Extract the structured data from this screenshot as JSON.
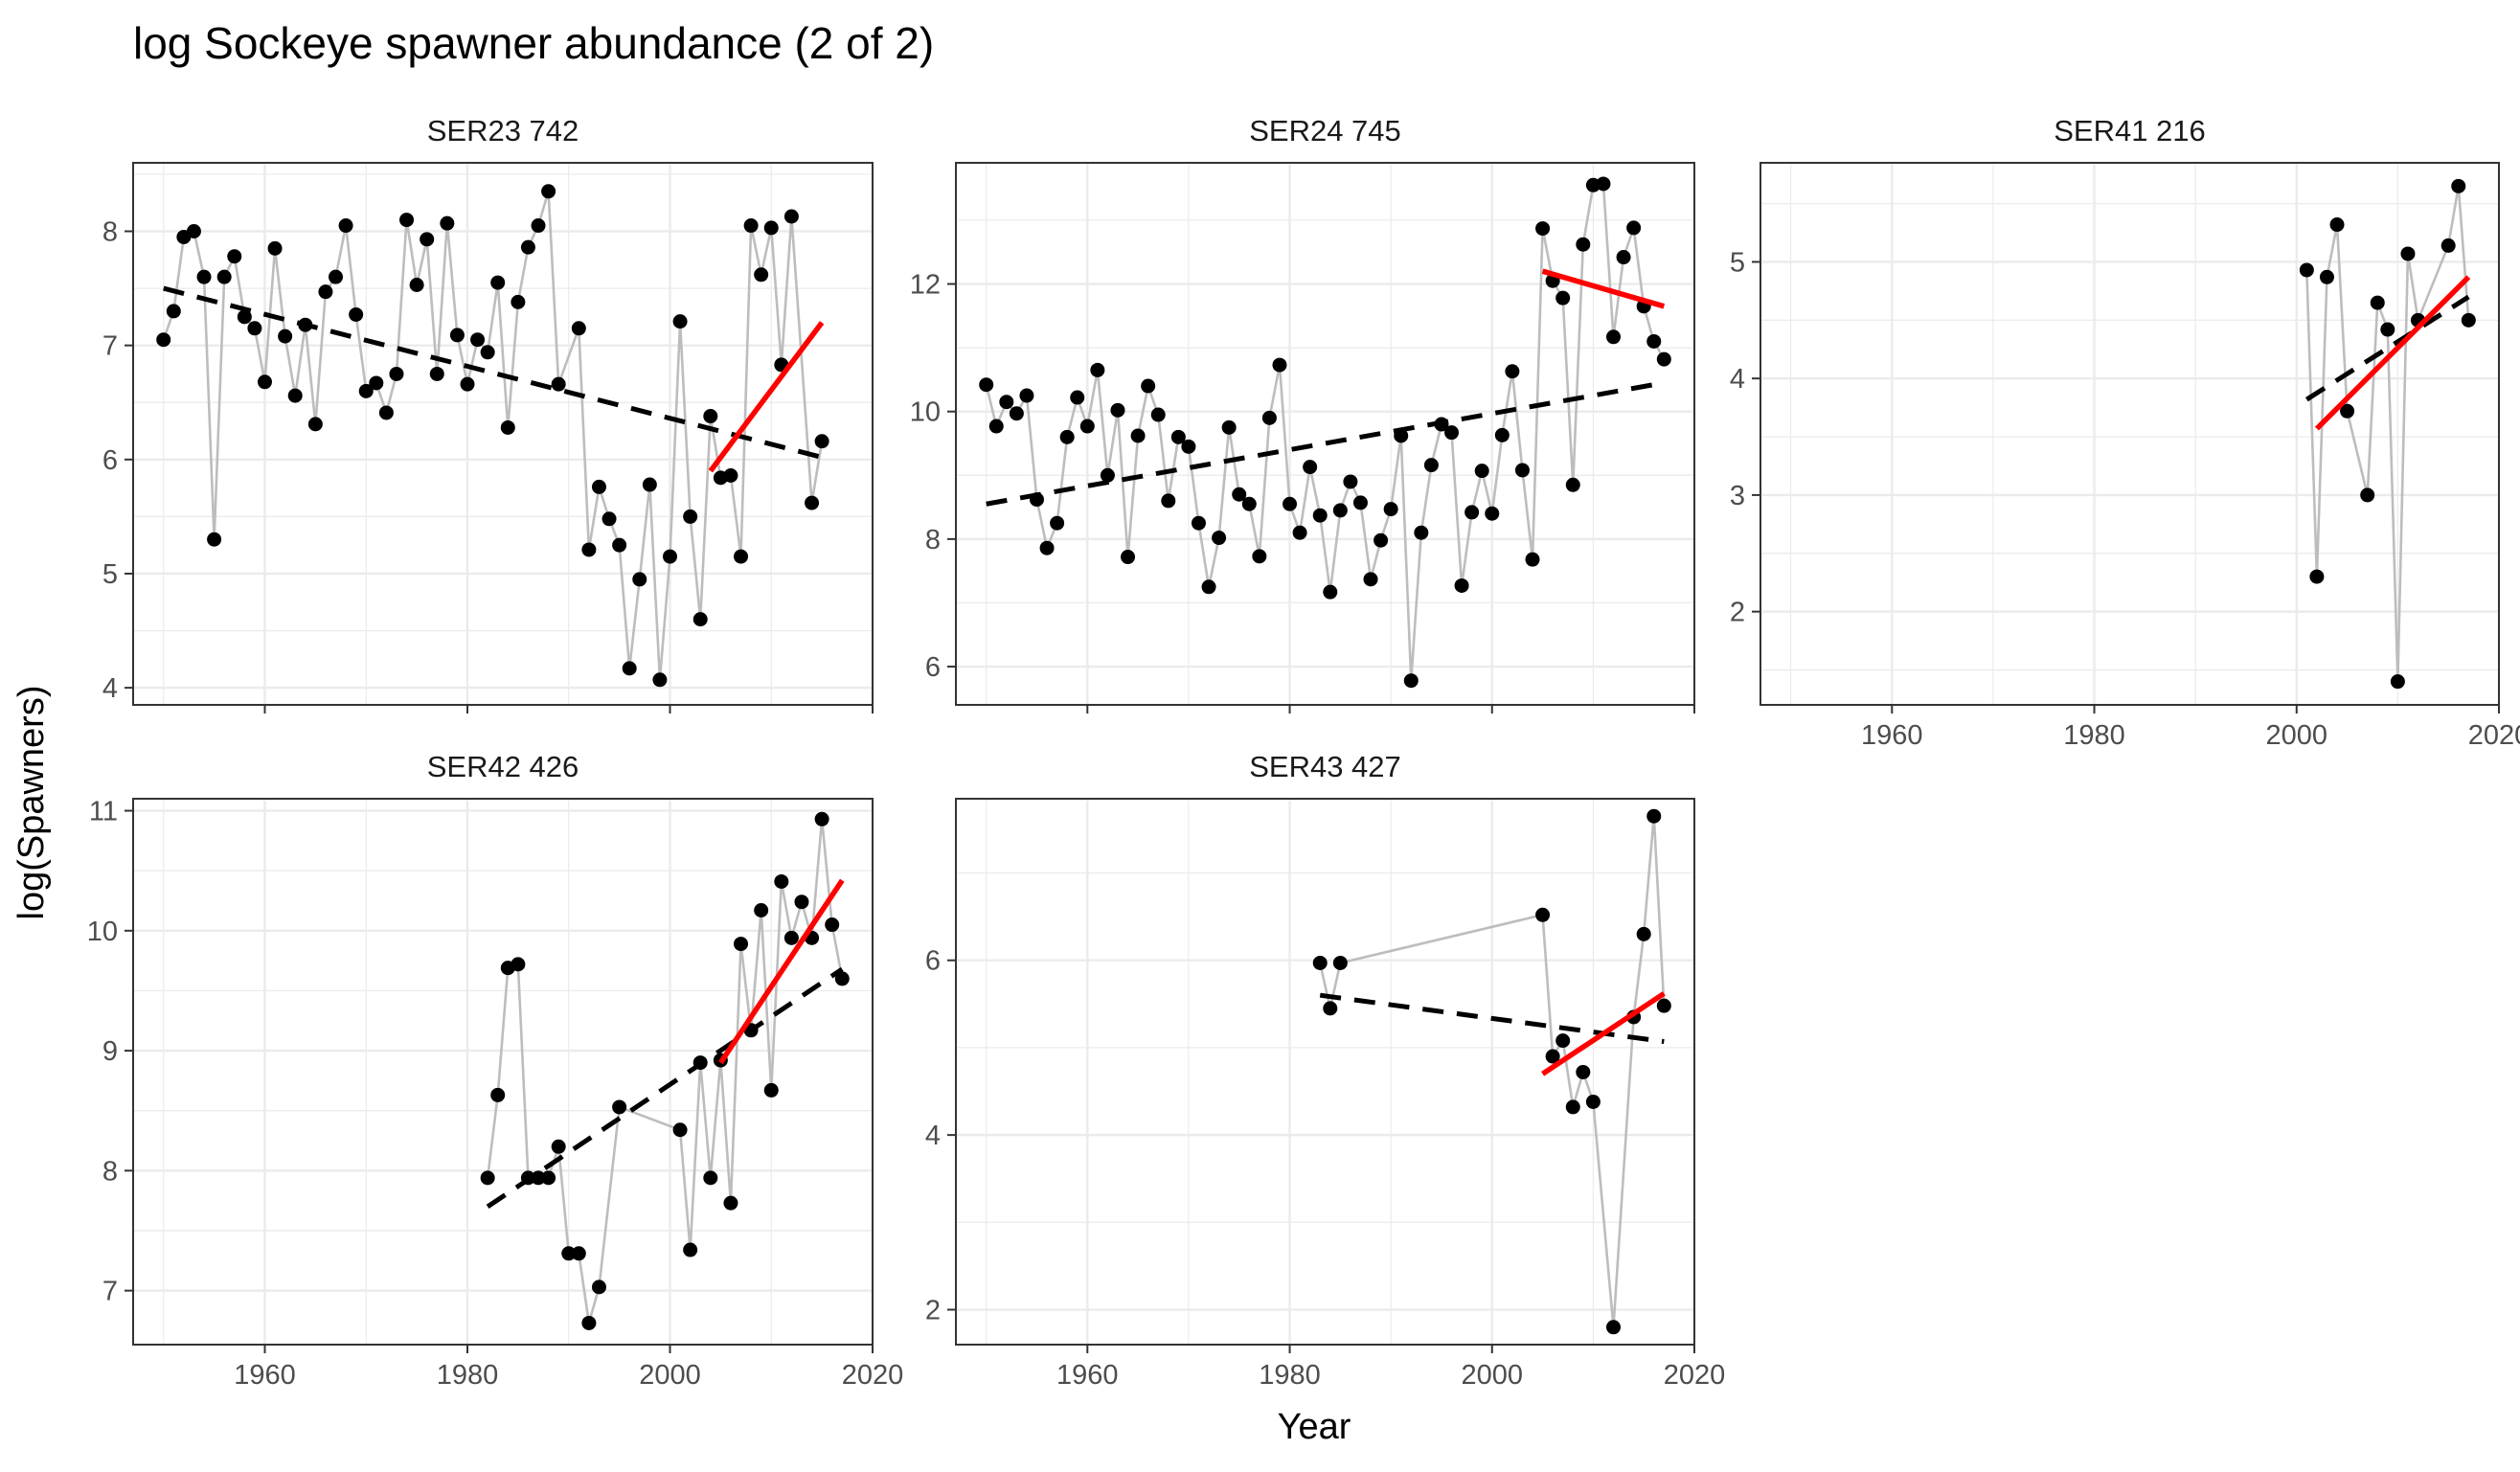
{
  "title": "log Sockeye spawner abundance (2 of 2)",
  "xlabel": "Year",
  "ylabel": "log(Spawners)",
  "colors": {
    "points": "#000000",
    "connector": "#bdbdbd",
    "trend_all": "#000000",
    "trend_recent": "#ff0000",
    "grid": "#ebebeb",
    "panel_border": "#333333"
  },
  "chart_data": [
    {
      "type": "scatter",
      "title": "SER23 742",
      "xlim": [
        1947,
        2020
      ],
      "ylim": [
        3.85,
        8.6
      ],
      "x_ticks": [
        1960,
        1980,
        2000,
        2020
      ],
      "y_ticks": [
        4,
        5,
        6,
        7,
        8
      ],
      "x_tick_labels_shown": false,
      "points": [
        [
          1950,
          7.05
        ],
        [
          1951,
          7.3
        ],
        [
          1952,
          7.95
        ],
        [
          1953,
          8.0
        ],
        [
          1954,
          7.6
        ],
        [
          1955,
          5.3
        ],
        [
          1956,
          7.6
        ],
        [
          1957,
          7.78
        ],
        [
          1958,
          7.25
        ],
        [
          1959,
          7.15
        ],
        [
          1960,
          6.68
        ],
        [
          1961,
          7.85
        ],
        [
          1962,
          7.08
        ],
        [
          1963,
          6.56
        ],
        [
          1964,
          7.18
        ],
        [
          1965,
          6.31
        ],
        [
          1966,
          7.47
        ],
        [
          1967,
          7.6
        ],
        [
          1968,
          8.05
        ],
        [
          1969,
          7.27
        ],
        [
          1970,
          6.6
        ],
        [
          1971,
          6.67
        ],
        [
          1972,
          6.41
        ],
        [
          1973,
          6.75
        ],
        [
          1974,
          8.1
        ],
        [
          1975,
          7.53
        ],
        [
          1976,
          7.93
        ],
        [
          1977,
          6.75
        ],
        [
          1978,
          8.07
        ],
        [
          1979,
          7.09
        ],
        [
          1980,
          6.66
        ],
        [
          1981,
          7.05
        ],
        [
          1982,
          6.94
        ],
        [
          1983,
          7.55
        ],
        [
          1984,
          6.28
        ],
        [
          1985,
          7.38
        ],
        [
          1986,
          7.86
        ],
        [
          1987,
          8.05
        ],
        [
          1988,
          8.35
        ],
        [
          1989,
          6.66
        ],
        [
          1991,
          7.15
        ],
        [
          1992,
          5.21
        ],
        [
          1993,
          5.76
        ],
        [
          1994,
          5.48
        ],
        [
          1995,
          5.25
        ],
        [
          1996,
          4.17
        ],
        [
          1997,
          4.95
        ],
        [
          1998,
          5.78
        ],
        [
          1999,
          4.07
        ],
        [
          2000,
          5.15
        ],
        [
          2001,
          7.21
        ],
        [
          2002,
          5.5
        ],
        [
          2003,
          4.6
        ],
        [
          2004,
          6.38
        ],
        [
          2005,
          5.84
        ],
        [
          2006,
          5.86
        ],
        [
          2007,
          5.15
        ],
        [
          2008,
          8.05
        ],
        [
          2009,
          7.62
        ],
        [
          2010,
          8.03
        ],
        [
          2011,
          6.83
        ],
        [
          2012,
          8.13
        ],
        [
          2014,
          5.62
        ],
        [
          2015,
          6.16
        ]
      ],
      "trend_all": [
        [
          1950,
          7.5
        ],
        [
          2015,
          6.02
        ]
      ],
      "trend_recent": [
        [
          2004,
          5.9
        ],
        [
          2015,
          7.2
        ]
      ]
    },
    {
      "type": "scatter",
      "title": "SER24 745",
      "xlim": [
        1947,
        2020
      ],
      "ylim": [
        5.4,
        13.9
      ],
      "x_ticks": [
        1960,
        1980,
        2000,
        2020
      ],
      "y_ticks": [
        6,
        8,
        10,
        12
      ],
      "x_tick_labels_shown": false,
      "points": [
        [
          1950,
          10.42
        ],
        [
          1951,
          9.77
        ],
        [
          1952,
          10.15
        ],
        [
          1953,
          9.97
        ],
        [
          1954,
          10.25
        ],
        [
          1955,
          8.62
        ],
        [
          1956,
          7.86
        ],
        [
          1957,
          8.25
        ],
        [
          1958,
          9.6
        ],
        [
          1959,
          10.22
        ],
        [
          1960,
          9.77
        ],
        [
          1961,
          10.65
        ],
        [
          1962,
          9.0
        ],
        [
          1963,
          10.02
        ],
        [
          1964,
          7.72
        ],
        [
          1965,
          9.62
        ],
        [
          1966,
          10.4
        ],
        [
          1967,
          9.95
        ],
        [
          1968,
          8.6
        ],
        [
          1969,
          9.6
        ],
        [
          1970,
          9.45
        ],
        [
          1971,
          8.25
        ],
        [
          1972,
          7.25
        ],
        [
          1973,
          8.02
        ],
        [
          1974,
          9.75
        ],
        [
          1975,
          8.7
        ],
        [
          1976,
          8.55
        ],
        [
          1977,
          7.73
        ],
        [
          1978,
          9.9
        ],
        [
          1979,
          10.73
        ],
        [
          1980,
          8.55
        ],
        [
          1981,
          8.1
        ],
        [
          1982,
          9.13
        ],
        [
          1983,
          8.37
        ],
        [
          1984,
          7.17
        ],
        [
          1985,
          8.45
        ],
        [
          1986,
          8.9
        ],
        [
          1987,
          8.57
        ],
        [
          1988,
          7.37
        ],
        [
          1989,
          7.98
        ],
        [
          1990,
          8.47
        ],
        [
          1991,
          9.62
        ],
        [
          1992,
          5.78
        ],
        [
          1993,
          8.1
        ],
        [
          1994,
          9.16
        ],
        [
          1995,
          9.8
        ],
        [
          1996,
          9.67
        ],
        [
          1997,
          7.27
        ],
        [
          1998,
          8.42
        ],
        [
          1999,
          9.07
        ],
        [
          2000,
          8.4
        ],
        [
          2001,
          9.63
        ],
        [
          2002,
          10.63
        ],
        [
          2003,
          9.08
        ],
        [
          2004,
          7.68
        ],
        [
          2005,
          12.87
        ],
        [
          2006,
          12.05
        ],
        [
          2007,
          11.78
        ],
        [
          2008,
          8.85
        ],
        [
          2009,
          12.62
        ],
        [
          2010,
          13.55
        ],
        [
          2011,
          13.57
        ],
        [
          2012,
          11.17
        ],
        [
          2013,
          12.42
        ],
        [
          2014,
          12.88
        ],
        [
          2015,
          11.65
        ],
        [
          2016,
          11.1
        ],
        [
          2017,
          10.82
        ]
      ],
      "trend_all": [
        [
          1950,
          8.55
        ],
        [
          2017,
          10.45
        ]
      ],
      "trend_recent": [
        [
          2005,
          12.2
        ],
        [
          2017,
          11.65
        ]
      ]
    },
    {
      "type": "scatter",
      "title": "SER41 216",
      "xlim": [
        1947,
        2020
      ],
      "ylim": [
        1.2,
        5.85
      ],
      "x_ticks": [
        1960,
        1980,
        2000,
        2020
      ],
      "y_ticks": [
        2,
        3,
        4,
        5
      ],
      "x_tick_labels_shown": true,
      "points": [
        [
          2001,
          4.93
        ],
        [
          2002,
          2.3
        ],
        [
          2003,
          4.87
        ],
        [
          2004,
          5.32
        ],
        [
          2005,
          3.72
        ],
        [
          2007,
          3.0
        ],
        [
          2008,
          4.65
        ],
        [
          2009,
          4.42
        ],
        [
          2010,
          1.4
        ],
        [
          2011,
          5.07
        ],
        [
          2012,
          4.5
        ],
        [
          2015,
          5.14
        ],
        [
          2016,
          5.65
        ],
        [
          2017,
          4.5
        ]
      ],
      "trend_all": [
        [
          2001,
          3.82
        ],
        [
          2017,
          4.7
        ]
      ],
      "trend_recent": [
        [
          2002,
          3.57
        ],
        [
          2017,
          4.87
        ]
      ]
    },
    {
      "type": "scatter",
      "title": "SER42 426",
      "xlim": [
        1947,
        2020
      ],
      "ylim": [
        6.55,
        11.1
      ],
      "x_ticks": [
        1960,
        1980,
        2000,
        2020
      ],
      "y_ticks": [
        7,
        8,
        9,
        10,
        11
      ],
      "x_tick_labels_shown": true,
      "points": [
        [
          1982,
          7.94
        ],
        [
          1983,
          8.63
        ],
        [
          1984,
          9.69
        ],
        [
          1985,
          9.72
        ],
        [
          1986,
          7.94
        ],
        [
          1987,
          7.94
        ],
        [
          1988,
          7.94
        ],
        [
          1989,
          8.2
        ],
        [
          1990,
          7.31
        ],
        [
          1991,
          7.31
        ],
        [
          1992,
          6.73
        ],
        [
          1993,
          7.03
        ],
        [
          1995,
          8.53
        ],
        [
          2001,
          8.34
        ],
        [
          2002,
          7.34
        ],
        [
          2003,
          8.9
        ],
        [
          2004,
          7.94
        ],
        [
          2005,
          8.92
        ],
        [
          2006,
          7.73
        ],
        [
          2007,
          9.89
        ],
        [
          2008,
          9.17
        ],
        [
          2009,
          10.17
        ],
        [
          2010,
          8.67
        ],
        [
          2011,
          10.41
        ],
        [
          2012,
          9.94
        ],
        [
          2013,
          10.24
        ],
        [
          2014,
          9.94
        ],
        [
          2015,
          10.93
        ],
        [
          2016,
          10.05
        ],
        [
          2017,
          9.6
        ]
      ],
      "trend_all": [
        [
          1982,
          7.7
        ],
        [
          2017,
          9.68
        ]
      ],
      "trend_recent": [
        [
          2005,
          8.9
        ],
        [
          2017,
          10.42
        ]
      ]
    },
    {
      "type": "scatter",
      "title": "SER43 427",
      "xlim": [
        1947,
        2020
      ],
      "ylim": [
        1.6,
        7.85
      ],
      "x_ticks": [
        1960,
        1980,
        2000,
        2020
      ],
      "y_ticks": [
        2,
        4,
        6
      ],
      "x_tick_labels_shown": true,
      "points": [
        [
          1983,
          5.97
        ],
        [
          1984,
          5.45
        ],
        [
          1985,
          5.97
        ],
        [
          2005,
          6.52
        ],
        [
          2006,
          4.9
        ],
        [
          2007,
          5.08
        ],
        [
          2008,
          4.32
        ],
        [
          2009,
          4.72
        ],
        [
          2010,
          4.38
        ],
        [
          2012,
          1.8
        ],
        [
          2014,
          5.35
        ],
        [
          2015,
          6.3
        ],
        [
          2016,
          7.65
        ],
        [
          2017,
          5.48
        ]
      ],
      "trend_all": [
        [
          1983,
          5.6
        ],
        [
          2017,
          5.07
        ]
      ],
      "trend_recent": [
        [
          2005,
          4.7
        ],
        [
          2017,
          5.62
        ]
      ]
    }
  ]
}
